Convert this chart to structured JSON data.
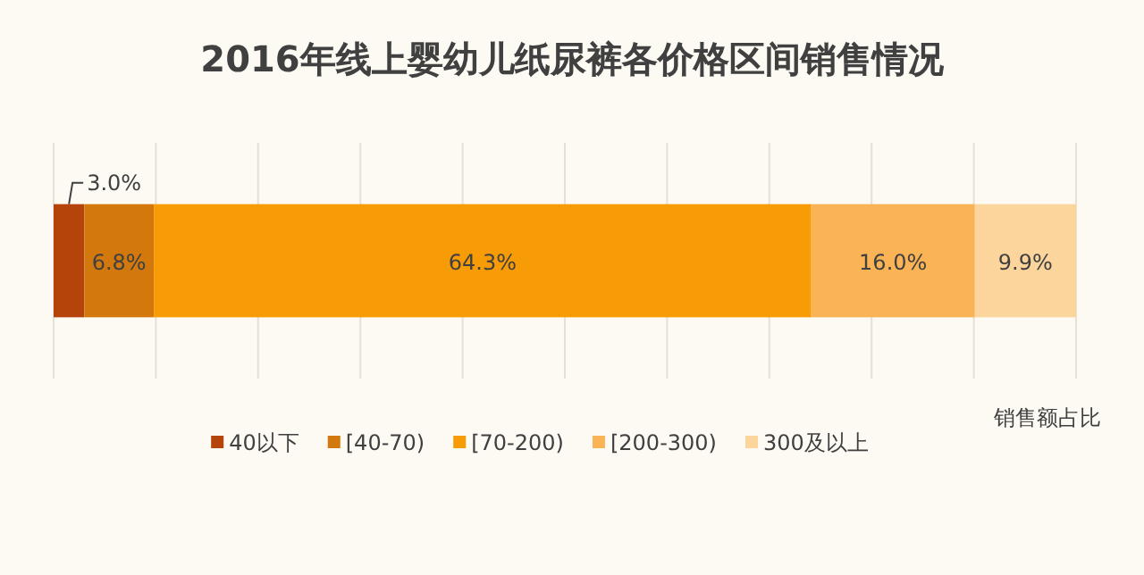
{
  "chart_data": {
    "type": "bar",
    "title": "2016年线上婴幼儿纸尿裤各价格区间销售情况",
    "orientation": "horizontal",
    "stacked": true,
    "categories": [
      null
    ],
    "series": [
      {
        "name": "40以下",
        "color": "#b5440a",
        "values": [
          3.0
        ],
        "value_labels": [
          "3.0%"
        ]
      },
      {
        "name": "[40-70)",
        "color": "#d3780c",
        "values": [
          6.8
        ],
        "value_labels": [
          "6.8%"
        ]
      },
      {
        "name": "[70-200)",
        "color": "#f79b06",
        "values": [
          64.3
        ],
        "value_labels": [
          "64.3%"
        ]
      },
      {
        "name": "[200-300)",
        "color": "#fab455",
        "values": [
          16.0
        ],
        "value_labels": [
          "16.0%"
        ]
      },
      {
        "name": "300及以上",
        "color": "#fcd59c",
        "values": [
          9.9
        ],
        "value_labels": [
          "9.9%"
        ]
      }
    ],
    "xlabel": "销售额占比",
    "xlim": [
      0,
      100
    ],
    "xticks": [
      {
        "value": 0,
        "label": null
      },
      {
        "value": 10,
        "label": null
      },
      {
        "value": 20,
        "label": null
      },
      {
        "value": 30,
        "label": null
      },
      {
        "value": 40,
        "label": null
      },
      {
        "value": 50,
        "label": null
      },
      {
        "value": 60,
        "label": null
      },
      {
        "value": 70,
        "label": null
      },
      {
        "value": 80,
        "label": null
      },
      {
        "value": 90,
        "label": null
      },
      {
        "value": 100,
        "label": null
      }
    ],
    "grid": "x",
    "legend": "bottom"
  }
}
